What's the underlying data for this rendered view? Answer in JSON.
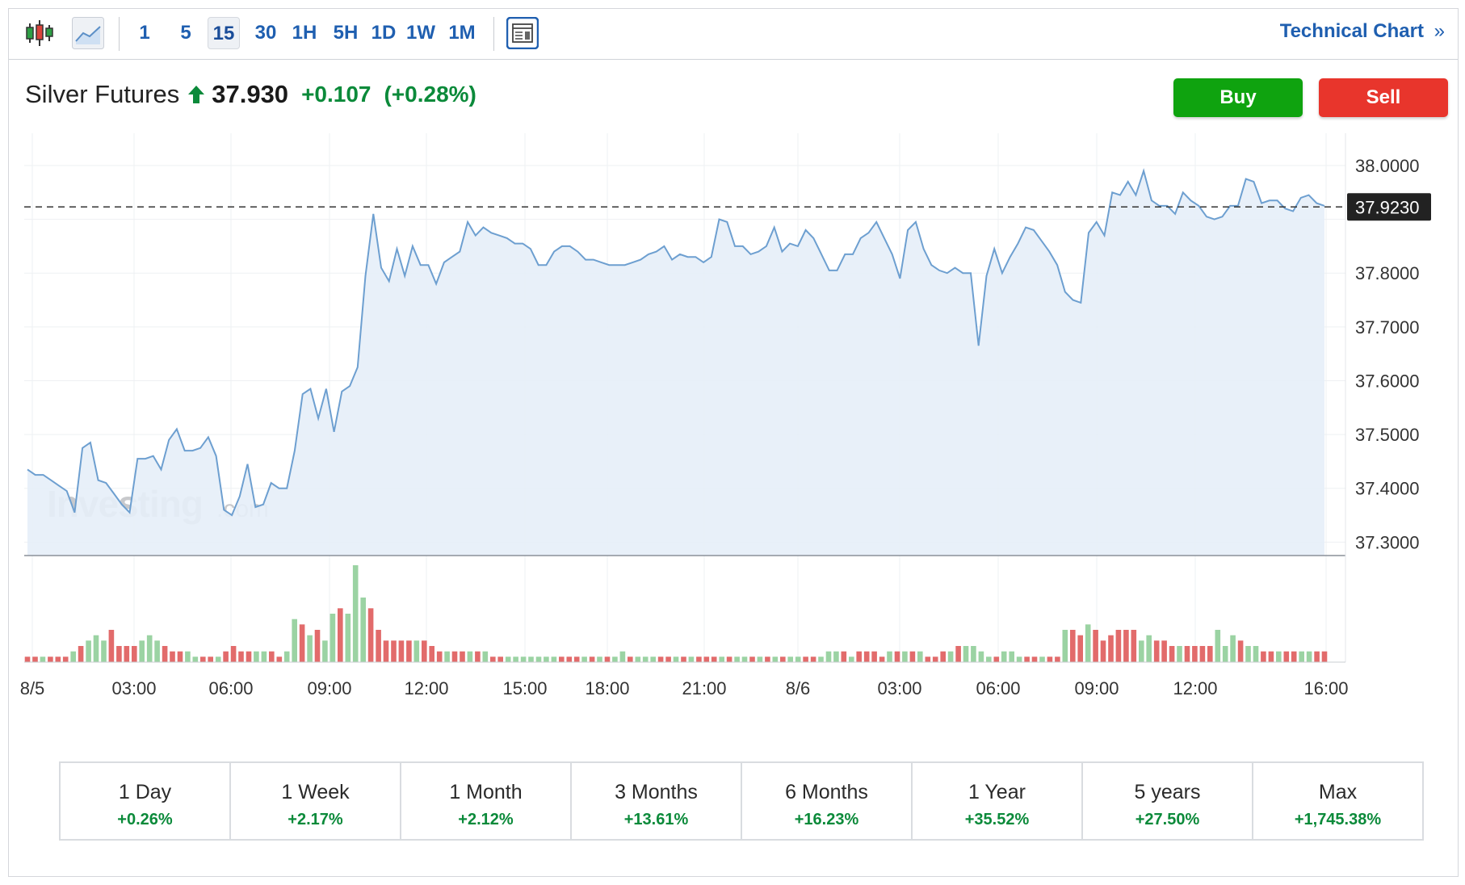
{
  "toolbar": {
    "candles_icon": "candlestick-chart-icon",
    "area_icon": "area-chart-icon",
    "intervals": [
      "1",
      "5",
      "15",
      "30",
      "1H",
      "5H",
      "1D",
      "1W",
      "1M"
    ],
    "active_interval": "15",
    "layout_icon": "chart-layout-icon",
    "technical_chart_label": "Technical Chart",
    "technical_chart_arrow": "»"
  },
  "header": {
    "name": "Silver Futures",
    "price": "37.930",
    "change": "+0.107",
    "change_pct": "(+0.28%)"
  },
  "actions": {
    "buy_label": "Buy",
    "sell_label": "Sell"
  },
  "watermark": {
    "brand": "Investing",
    "suffix": ".com"
  },
  "colors": {
    "accent": "#1f5fb0",
    "up": "#0b8a3a",
    "buy": "#0fa30f",
    "sell": "#e8352c",
    "line": "#6d9fd0",
    "area": "#e6eef8",
    "vol_up": "#9bd3a3",
    "vol_down": "#e26b6b"
  },
  "chart_data": {
    "type": "area",
    "title": "",
    "xlabel": "",
    "ylabel": "",
    "x_tick_labels": [
      "8/5",
      "03:00",
      "06:00",
      "09:00",
      "12:00",
      "15:00",
      "18:00",
      "21:00",
      "8/6",
      "03:00",
      "06:00",
      "09:00",
      "12:00",
      "16:00"
    ],
    "y_tick_labels": [
      "38.0000",
      "37.8000",
      "37.7000",
      "37.6000",
      "37.5000",
      "37.4000",
      "37.3000"
    ],
    "ylim": [
      37.275,
      38.06
    ],
    "current_value_label": "37.9230",
    "current_value": 37.923,
    "grid": true,
    "series": [
      {
        "values": [
          37.435,
          37.425,
          37.425,
          37.415,
          37.405,
          37.395,
          37.355,
          37.475,
          37.485,
          37.415,
          37.41,
          37.39,
          37.37,
          37.355,
          37.455,
          37.455,
          37.46,
          37.435,
          37.49,
          37.51,
          37.47,
          37.47,
          37.475,
          37.495,
          37.46,
          37.36,
          37.35,
          37.385,
          37.445,
          37.365,
          37.37,
          37.41,
          37.4,
          37.4,
          37.47,
          37.575,
          37.585,
          37.53,
          37.585,
          37.505,
          37.58,
          37.59,
          37.625,
          37.795,
          37.91,
          37.81,
          37.785,
          37.845,
          37.795,
          37.85,
          37.815,
          37.815,
          37.78,
          37.82,
          37.83,
          37.84,
          37.895,
          37.87,
          37.885,
          37.875,
          37.87,
          37.865,
          37.855,
          37.855,
          37.845,
          37.815,
          37.815,
          37.84,
          37.85,
          37.85,
          37.84,
          37.825,
          37.825,
          37.82,
          37.815,
          37.815,
          37.815,
          37.82,
          37.825,
          37.835,
          37.84,
          37.85,
          37.825,
          37.835,
          37.83,
          37.83,
          37.82,
          37.83,
          37.9,
          37.895,
          37.85,
          37.85,
          37.835,
          37.84,
          37.85,
          37.885,
          37.84,
          37.855,
          37.85,
          37.88,
          37.865,
          37.835,
          37.805,
          37.805,
          37.835,
          37.835,
          37.865,
          37.875,
          37.895,
          37.865,
          37.835,
          37.79,
          37.88,
          37.895,
          37.845,
          37.815,
          37.805,
          37.8,
          37.81,
          37.8,
          37.8,
          37.665,
          37.795,
          37.845,
          37.8,
          37.83,
          37.855,
          37.885,
          37.88,
          37.86,
          37.84,
          37.815,
          37.765,
          37.75,
          37.745,
          37.875,
          37.895,
          37.87,
          37.95,
          37.945,
          37.97,
          37.945,
          37.99,
          37.935,
          37.925,
          37.925,
          37.91,
          37.95,
          37.935,
          37.925,
          37.905,
          37.9,
          37.905,
          37.925,
          37.925,
          37.975,
          37.97,
          37.93,
          37.935,
          37.935,
          37.92,
          37.915,
          37.94,
          37.945,
          37.93,
          37.925
        ]
      }
    ],
    "volume": {
      "up": [
        false,
        false,
        true,
        false,
        false,
        false,
        true,
        false,
        true,
        true,
        true,
        false,
        false,
        false,
        false,
        true,
        true,
        true,
        false,
        false,
        false,
        true,
        true,
        false,
        false,
        true,
        false,
        false,
        false,
        false,
        true,
        true,
        false,
        false,
        true,
        true,
        false,
        true,
        false,
        true,
        true,
        false,
        true,
        true,
        true,
        false,
        false,
        false,
        false,
        false,
        false,
        true,
        false,
        false,
        false,
        true,
        false,
        false,
        true,
        false,
        true,
        false,
        false,
        true,
        true,
        true,
        true,
        true,
        true,
        true,
        false,
        false,
        false,
        true,
        false,
        true,
        false,
        true,
        true,
        false,
        true,
        true,
        true,
        false,
        false,
        true,
        false,
        true,
        false,
        false,
        false,
        true,
        false,
        true,
        true,
        false,
        true,
        false,
        true,
        false,
        true,
        true,
        false,
        false,
        true,
        true,
        true,
        false,
        true,
        false,
        false,
        false,
        false,
        true,
        false,
        true,
        false,
        true,
        false,
        false,
        false,
        true,
        false,
        true,
        true,
        true,
        true,
        false,
        true,
        true,
        true,
        false,
        false,
        true,
        false,
        false,
        true,
        false,
        false,
        true,
        false,
        false,
        false,
        false,
        false,
        false,
        true,
        true,
        false,
        false,
        false,
        true,
        false,
        false,
        false,
        false,
        true,
        true,
        true,
        false,
        true,
        true,
        false,
        false,
        true,
        false,
        false,
        true,
        true,
        false,
        false
      ],
      "values": [
        1,
        1,
        1,
        1,
        1,
        1,
        2,
        3,
        4,
        5,
        4,
        6,
        3,
        3,
        3,
        4,
        5,
        4,
        3,
        2,
        2,
        2,
        1,
        1,
        1,
        1,
        2,
        3,
        2,
        2,
        2,
        2,
        2,
        1,
        2,
        8,
        7,
        5,
        6,
        4,
        9,
        10,
        9,
        18,
        12,
        10,
        6,
        4,
        4,
        4,
        4,
        4,
        4,
        3,
        2,
        2,
        2,
        2,
        2,
        2,
        2,
        1,
        1,
        1,
        1,
        1,
        1,
        1,
        1,
        1,
        1,
        1,
        1,
        1,
        1,
        1,
        1,
        1,
        2,
        1,
        1,
        1,
        1,
        1,
        1,
        1,
        1,
        1,
        1,
        1,
        1,
        1,
        1,
        1,
        1,
        1,
        1,
        1,
        1,
        1,
        1,
        1,
        1,
        1,
        1,
        2,
        2,
        2,
        1,
        2,
        2,
        2,
        1,
        2,
        2,
        2,
        2,
        2,
        1,
        1,
        2,
        2,
        3,
        3,
        3,
        2,
        1,
        1,
        2,
        2,
        1,
        1,
        1,
        1,
        1,
        1,
        6,
        6,
        5,
        7,
        6,
        4,
        5,
        6,
        6,
        6,
        4,
        5,
        4,
        4,
        3,
        3,
        3,
        3,
        3,
        3,
        6,
        3,
        5,
        4,
        3,
        3,
        2,
        2,
        2,
        2,
        2,
        2,
        2,
        2,
        2
      ]
    }
  },
  "periods": [
    {
      "label": "1 Day",
      "value": "+0.26%"
    },
    {
      "label": "1 Week",
      "value": "+2.17%"
    },
    {
      "label": "1 Month",
      "value": "+2.12%"
    },
    {
      "label": "3 Months",
      "value": "+13.61%"
    },
    {
      "label": "6 Months",
      "value": "+16.23%"
    },
    {
      "label": "1 Year",
      "value": "+35.52%"
    },
    {
      "label": "5 years",
      "value": "+27.50%"
    },
    {
      "label": "Max",
      "value": "+1,745.38%"
    }
  ]
}
